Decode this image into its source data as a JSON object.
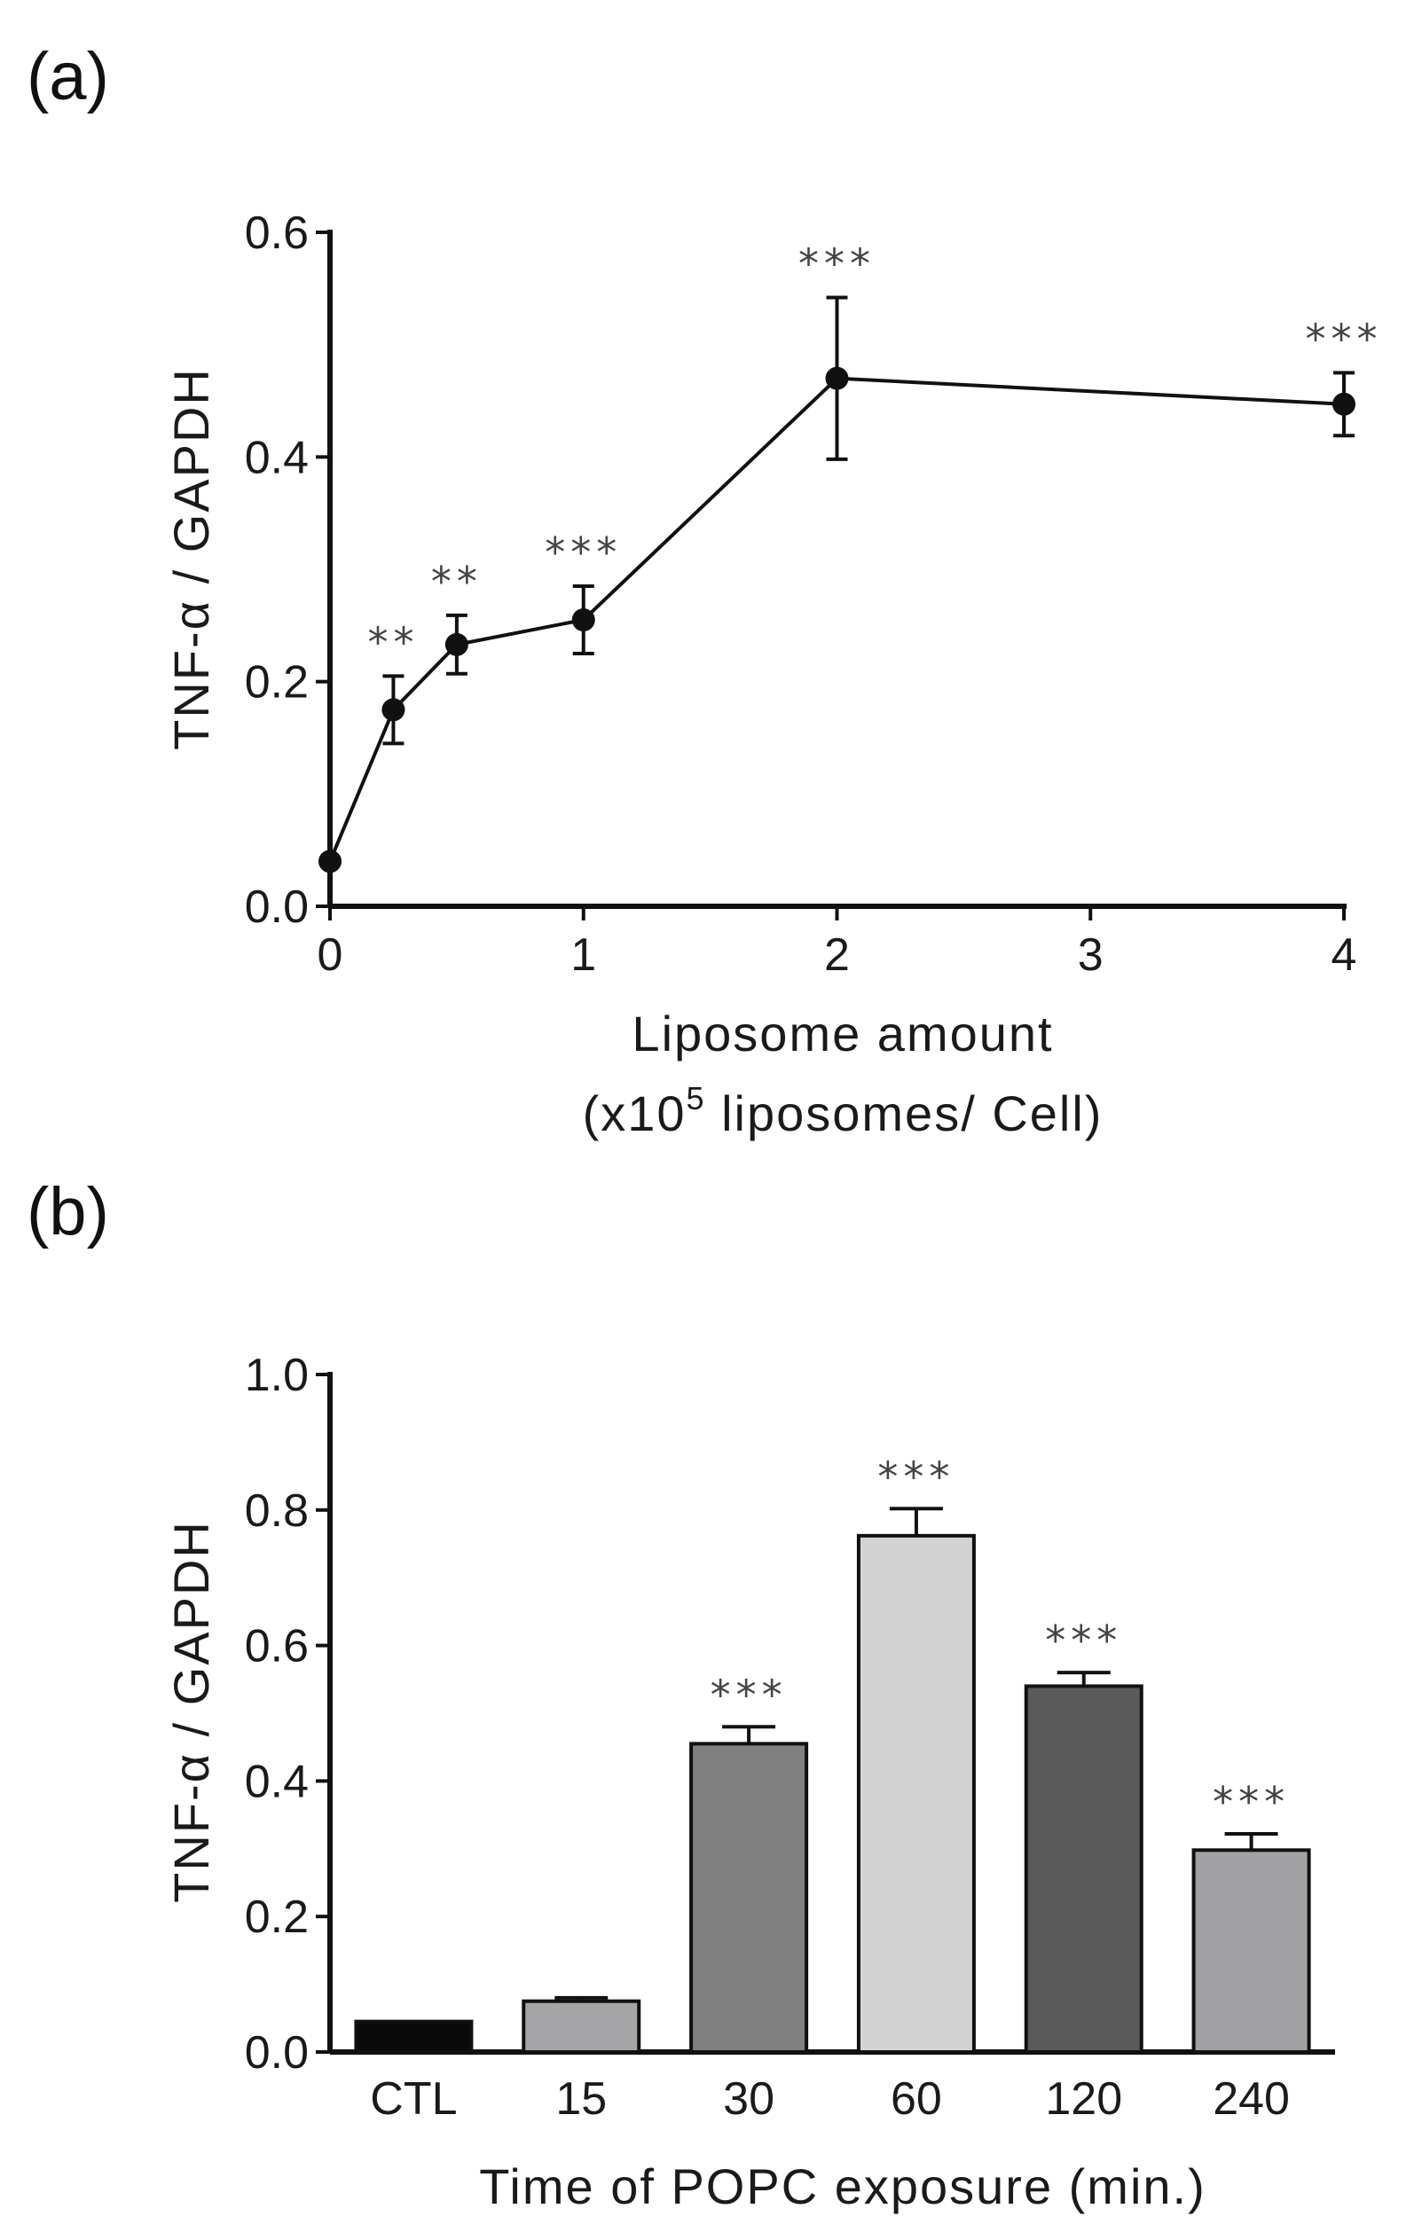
{
  "chart_data": [
    {
      "panel": "(a)",
      "type": "line",
      "xlabel": "Liposome amount",
      "xlabel_line2_prefix": "(x10",
      "xlabel_line2_sup": "5",
      "xlabel_line2_suffix": " liposomes/ Cell)",
      "ylabel": "TNF-α / GAPDH",
      "xlim": [
        0,
        4
      ],
      "ylim": [
        0,
        0.6
      ],
      "xticks": [
        0,
        1,
        2,
        3,
        4
      ],
      "yticks": [
        0.0,
        0.2,
        0.4,
        0.6
      ],
      "ytick_labels": [
        "0.0",
        "0.2",
        "0.4",
        "0.6"
      ],
      "xtick_labels": [
        "0",
        "1",
        "2",
        "3",
        "4"
      ],
      "x": [
        0,
        0.25,
        0.5,
        1,
        2,
        4
      ],
      "y": [
        0.04,
        0.175,
        0.233,
        0.255,
        0.47,
        0.447
      ],
      "err": [
        0.0,
        0.03,
        0.026,
        0.03,
        0.072,
        0.028
      ],
      "significance": [
        "",
        "**",
        "**",
        "***",
        "***",
        "***"
      ]
    },
    {
      "panel": "(b)",
      "type": "bar",
      "xlabel": "Time of POPC exposure (min.)",
      "ylabel": "TNF-α / GAPDH",
      "ylim": [
        0,
        1.0
      ],
      "yticks": [
        0.0,
        0.2,
        0.4,
        0.6,
        0.8,
        1.0
      ],
      "ytick_labels": [
        "0.0",
        "0.2",
        "0.4",
        "0.6",
        "0.8",
        "1.0"
      ],
      "categories": [
        "CTL",
        "15",
        "30",
        "60",
        "120",
        "240"
      ],
      "values": [
        0.045,
        0.075,
        0.455,
        0.762,
        0.54,
        0.298
      ],
      "err": [
        0.0,
        0.005,
        0.025,
        0.04,
        0.02,
        0.024
      ],
      "colors": [
        "#0a0a0a",
        "#a5a5a8",
        "#808080",
        "#d3d3d3",
        "#5a5a5a",
        "#a2a2a5"
      ],
      "significance": [
        "",
        "",
        "***",
        "***",
        "***",
        "***"
      ]
    }
  ]
}
